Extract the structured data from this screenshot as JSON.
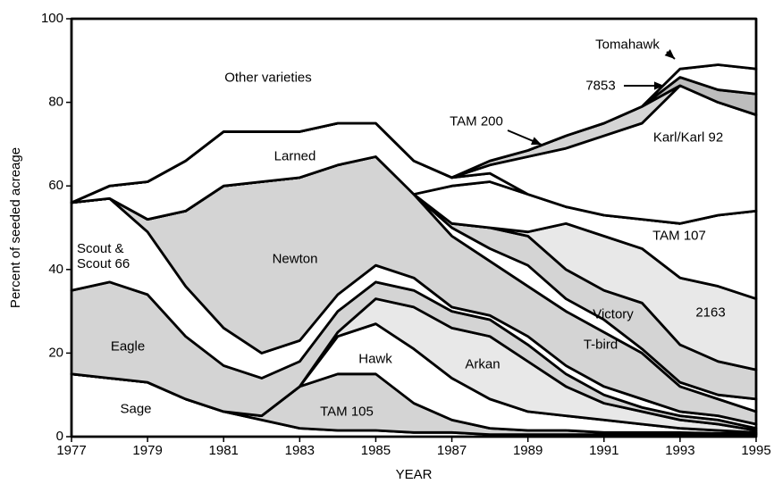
{
  "chart_data": {
    "type": "stacked_area",
    "x_label": "YEAR",
    "y_label": "Percent of seeded acreage",
    "x": [
      1977,
      1978,
      1979,
      1980,
      1981,
      1982,
      1983,
      1984,
      1985,
      1986,
      1987,
      1988,
      1989,
      1990,
      1991,
      1992,
      1993,
      1994,
      1995
    ],
    "xlim": [
      1977,
      1995
    ],
    "xticks": [
      1977,
      1979,
      1981,
      1983,
      1985,
      1987,
      1989,
      1991,
      1993,
      1995
    ],
    "ylim": [
      0,
      100
    ],
    "yticks": [
      0,
      20,
      40,
      60,
      80,
      100
    ],
    "series": [
      {
        "name": "Sage",
        "color": "#ffffff",
        "values": [
          15,
          14,
          13,
          9,
          6,
          4,
          2,
          1.5,
          1.5,
          1,
          1,
          0.5,
          0.5,
          0.5,
          0.5,
          0.5,
          0.5,
          0.5,
          0.5
        ]
      },
      {
        "name": "TAM 105",
        "color": "#d4d4d4",
        "values": [
          0,
          0,
          0,
          0,
          0,
          1,
          10,
          13.5,
          13.5,
          7,
          3,
          1.5,
          1,
          1,
          0.5,
          0.5,
          0.5,
          0.3,
          0.2
        ]
      },
      {
        "name": "Hawk",
        "color": "#ffffff",
        "values": [
          0,
          0,
          0,
          0,
          0,
          0,
          0,
          9,
          12,
          13,
          10,
          7,
          4.5,
          3.5,
          3,
          2,
          1,
          0.7,
          0.3
        ]
      },
      {
        "name": "Arkan",
        "color": "#e8e8e8",
        "values": [
          0,
          0,
          0,
          0,
          0,
          0,
          0,
          1,
          6,
          10,
          12,
          15,
          12,
          7,
          4,
          3,
          2,
          1.5,
          0.5
        ]
      },
      {
        "name": "Eagle",
        "color": "#d4d4d4",
        "values": [
          20,
          23,
          21,
          15,
          11,
          9,
          6,
          5,
          4,
          4,
          4,
          4,
          4,
          3,
          2,
          1,
          1,
          1,
          0.5
        ]
      },
      {
        "name": "Scout & Scout 66",
        "color": "#ffffff",
        "values": [
          21,
          20,
          15,
          12,
          9,
          6,
          5,
          4,
          4,
          3,
          1,
          1,
          2,
          2,
          2,
          2,
          1,
          1,
          1
        ]
      },
      {
        "name": "Newton",
        "color": "#d4d4d4",
        "values": [
          0,
          0,
          3,
          18,
          34,
          41,
          39,
          31,
          26,
          20,
          17,
          13,
          12,
          13,
          13,
          11,
          6,
          4,
          3
        ]
      },
      {
        "name": "T-bird",
        "color": "#ffffff",
        "values": [
          0,
          0,
          0,
          0,
          0,
          0,
          0,
          0,
          0,
          0,
          2,
          3,
          5,
          3,
          3,
          1,
          1,
          1,
          3
        ]
      },
      {
        "name": "Victory",
        "color": "#d4d4d4",
        "values": [
          0,
          0,
          0,
          0,
          0,
          0,
          0,
          0,
          0,
          0,
          1,
          5,
          7,
          7,
          7,
          11,
          9,
          8,
          7
        ]
      },
      {
        "name": "2163",
        "color": "#e8e8e8",
        "values": [
          0,
          0,
          0,
          0,
          0,
          0,
          0,
          0,
          0,
          0,
          0,
          0,
          1,
          11,
          13,
          13,
          16,
          18,
          17
        ]
      },
      {
        "name": "TAM 107",
        "color": "#ffffff",
        "values": [
          0,
          0,
          0,
          0,
          0,
          0,
          0,
          0,
          0,
          0,
          9,
          11,
          9,
          4,
          5,
          7,
          13,
          17,
          21
        ]
      },
      {
        "name": "Larned",
        "color": "#ffffff",
        "values": [
          0,
          3,
          9,
          12,
          13,
          12,
          11,
          10,
          8,
          8,
          2,
          2,
          0,
          0,
          0,
          0,
          0,
          0,
          0
        ]
      },
      {
        "name": "Karl/Karl 92",
        "color": "#ffffff",
        "values": [
          0,
          0,
          0,
          0,
          0,
          0,
          0,
          0,
          0,
          0,
          0,
          2,
          9,
          14,
          19,
          23,
          33,
          27,
          23
        ]
      },
      {
        "name": "TAM 200",
        "color": "#d4d4d4",
        "values": [
          0,
          0,
          0,
          0,
          0,
          0,
          0,
          0,
          0,
          0,
          0,
          1,
          1.5,
          3,
          3,
          4,
          0,
          0,
          0
        ]
      },
      {
        "name": "7853",
        "color": "#bdbdbd",
        "values": [
          0,
          0,
          0,
          0,
          0,
          0,
          0,
          0,
          0,
          0,
          0,
          0,
          0,
          0,
          0,
          0,
          2,
          3,
          5
        ]
      },
      {
        "name": "Tomahawk",
        "color": "#ffffff",
        "values": [
          0,
          0,
          0,
          0,
          0,
          0,
          0,
          0,
          0,
          0,
          0,
          0,
          0,
          0,
          0,
          0,
          2,
          6,
          6
        ]
      },
      {
        "name": "Other varieties",
        "color": "#ffffff",
        "values": [
          44,
          40,
          39,
          34,
          27,
          27,
          27,
          25,
          25,
          34,
          38,
          34,
          31.5,
          28,
          25,
          21,
          12,
          11,
          12
        ]
      }
    ]
  }
}
